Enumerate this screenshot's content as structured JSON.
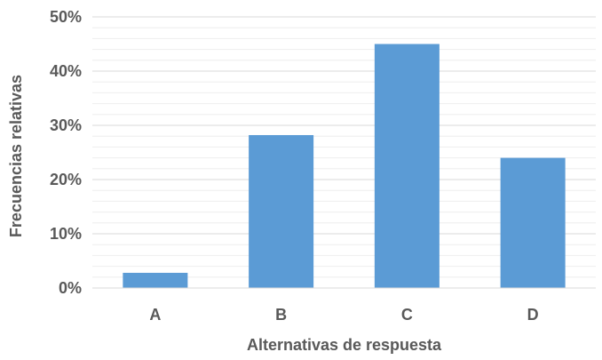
{
  "chart_data": {
    "type": "bar",
    "categories": [
      "A",
      "B",
      "C",
      "D"
    ],
    "values": [
      0.028,
      0.282,
      0.45,
      0.24
    ],
    "xlabel": "Alternativas de respuesta",
    "ylabel": "Frecuencias relativas",
    "ylim": [
      0,
      0.5
    ],
    "y_ticks": [
      0,
      0.1,
      0.2,
      0.3,
      0.4,
      0.5
    ],
    "y_tick_labels": [
      "0%",
      "10%",
      "20%",
      "30%",
      "40%",
      "50%"
    ],
    "y_format": "percent",
    "grid": true,
    "legend": "none",
    "colors": {
      "bar": "#5b9bd5",
      "major_grid": "#d9d9d9",
      "minor_grid": "#eeeeee",
      "axis_line": "#d9d9d9",
      "text": "#595959"
    }
  }
}
